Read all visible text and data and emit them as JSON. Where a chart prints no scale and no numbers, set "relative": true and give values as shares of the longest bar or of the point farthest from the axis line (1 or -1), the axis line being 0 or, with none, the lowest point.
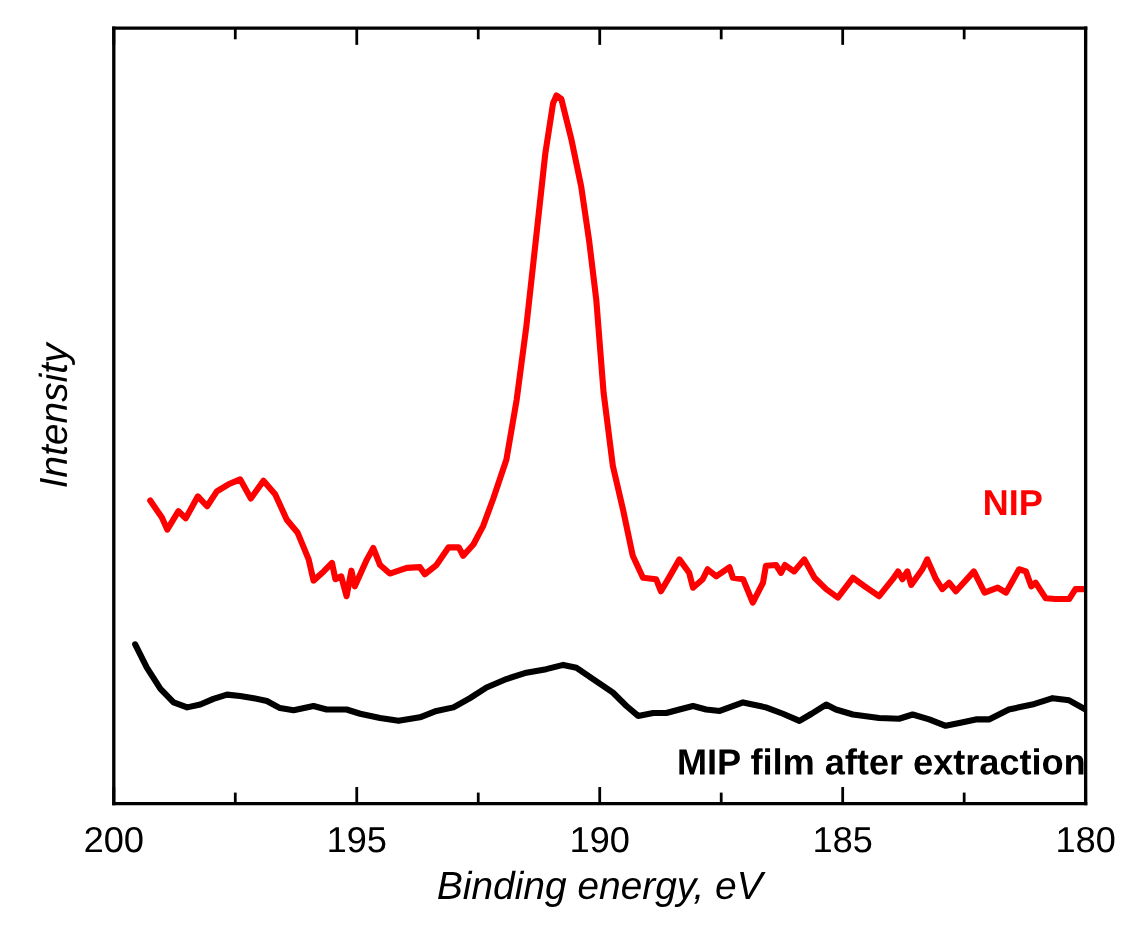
{
  "chart_data": {
    "type": "line",
    "relative": true,
    "xlabel": "Binding energy, eV",
    "ylabel": "Intensity",
    "xlim": [
      200,
      180
    ],
    "xticks": [
      200,
      195,
      190,
      185,
      180
    ],
    "legend": false,
    "grid": false,
    "marker": "none",
    "line_style": "solid",
    "series": [
      {
        "name": "NIP",
        "color": "#ff0000",
        "x": [
          199.25,
          199.01,
          198.9,
          198.67,
          198.52,
          198.27,
          198.08,
          197.88,
          197.64,
          197.4,
          197.18,
          196.92,
          196.68,
          196.44,
          196.22,
          195.99,
          195.89,
          195.68,
          195.51,
          195.44,
          195.32,
          195.21,
          195.11,
          195.04,
          194.79,
          194.66,
          194.52,
          194.32,
          193.97,
          193.7,
          193.6,
          193.36,
          193.11,
          192.9,
          192.81,
          192.6,
          192.4,
          192.19,
          191.92,
          191.71,
          191.51,
          191.3,
          191.12,
          190.96,
          190.89,
          190.79,
          190.58,
          190.38,
          190.22,
          190.07,
          189.92,
          189.73,
          189.52,
          189.32,
          189.11,
          188.84,
          188.74,
          188.56,
          188.36,
          188.16,
          188.08,
          187.88,
          187.78,
          187.6,
          187.33,
          187.26,
          187.05,
          186.85,
          186.64,
          186.58,
          186.37,
          186.27,
          186.19,
          186.0,
          185.79,
          185.58,
          185.34,
          185.1,
          184.79,
          184.55,
          184.25,
          183.97,
          183.86,
          183.77,
          183.67,
          183.59,
          183.36,
          183.26,
          183.08,
          182.95,
          182.81,
          182.67,
          182.3,
          182.08,
          181.81,
          181.64,
          181.37,
          181.23,
          181.12,
          181.03,
          180.82,
          180.62,
          180.34,
          180.21,
          180.0
        ],
        "values": [
          0.428,
          0.404,
          0.387,
          0.413,
          0.403,
          0.434,
          0.42,
          0.441,
          0.451,
          0.458,
          0.431,
          0.456,
          0.437,
          0.401,
          0.383,
          0.345,
          0.315,
          0.328,
          0.34,
          0.317,
          0.321,
          0.293,
          0.329,
          0.307,
          0.345,
          0.361,
          0.337,
          0.325,
          0.333,
          0.334,
          0.324,
          0.337,
          0.362,
          0.362,
          0.35,
          0.366,
          0.392,
          0.431,
          0.486,
          0.57,
          0.674,
          0.805,
          0.918,
          0.989,
          1,
          0.995,
          0.937,
          0.871,
          0.796,
          0.711,
          0.58,
          0.477,
          0.415,
          0.35,
          0.319,
          0.317,
          0.3,
          0.321,
          0.345,
          0.326,
          0.305,
          0.317,
          0.331,
          0.321,
          0.334,
          0.319,
          0.317,
          0.284,
          0.312,
          0.336,
          0.337,
          0.326,
          0.337,
          0.328,
          0.345,
          0.319,
          0.303,
          0.291,
          0.319,
          0.307,
          0.293,
          0.317,
          0.328,
          0.317,
          0.328,
          0.309,
          0.331,
          0.345,
          0.317,
          0.303,
          0.312,
          0.3,
          0.328,
          0.298,
          0.305,
          0.298,
          0.331,
          0.328,
          0.307,
          0.312,
          0.29,
          0.289,
          0.289,
          0.303,
          0.303
        ]
      },
      {
        "name": "MIP film after extraction",
        "color": "#000000",
        "x": [
          199.56,
          199.32,
          199.04,
          198.77,
          198.49,
          198.22,
          197.95,
          197.67,
          197.4,
          197.12,
          196.85,
          196.58,
          196.3,
          195.89,
          195.62,
          195.21,
          194.93,
          194.52,
          194.14,
          193.7,
          193.36,
          193.01,
          192.67,
          192.33,
          191.92,
          191.51,
          191.1,
          190.75,
          190.48,
          190.14,
          189.73,
          189.45,
          189.21,
          188.9,
          188.63,
          188.36,
          188.08,
          187.81,
          187.53,
          187.05,
          186.58,
          186.23,
          185.89,
          185.64,
          185.34,
          185.14,
          184.79,
          184.25,
          183.84,
          183.56,
          183.22,
          182.88,
          182.6,
          182.26,
          181.99,
          181.58,
          181.1,
          180.68,
          180.34,
          180.0
        ],
        "values": [
          0.225,
          0.192,
          0.162,
          0.143,
          0.136,
          0.14,
          0.148,
          0.154,
          0.152,
          0.149,
          0.145,
          0.135,
          0.132,
          0.138,
          0.133,
          0.133,
          0.127,
          0.121,
          0.117,
          0.122,
          0.131,
          0.136,
          0.149,
          0.164,
          0.176,
          0.185,
          0.19,
          0.196,
          0.192,
          0.176,
          0.157,
          0.138,
          0.124,
          0.128,
          0.128,
          0.133,
          0.138,
          0.133,
          0.131,
          0.143,
          0.136,
          0.127,
          0.117,
          0.127,
          0.14,
          0.133,
          0.126,
          0.121,
          0.12,
          0.126,
          0.119,
          0.11,
          0.114,
          0.119,
          0.119,
          0.133,
          0.14,
          0.149,
          0.146,
          0.133
        ]
      }
    ]
  }
}
